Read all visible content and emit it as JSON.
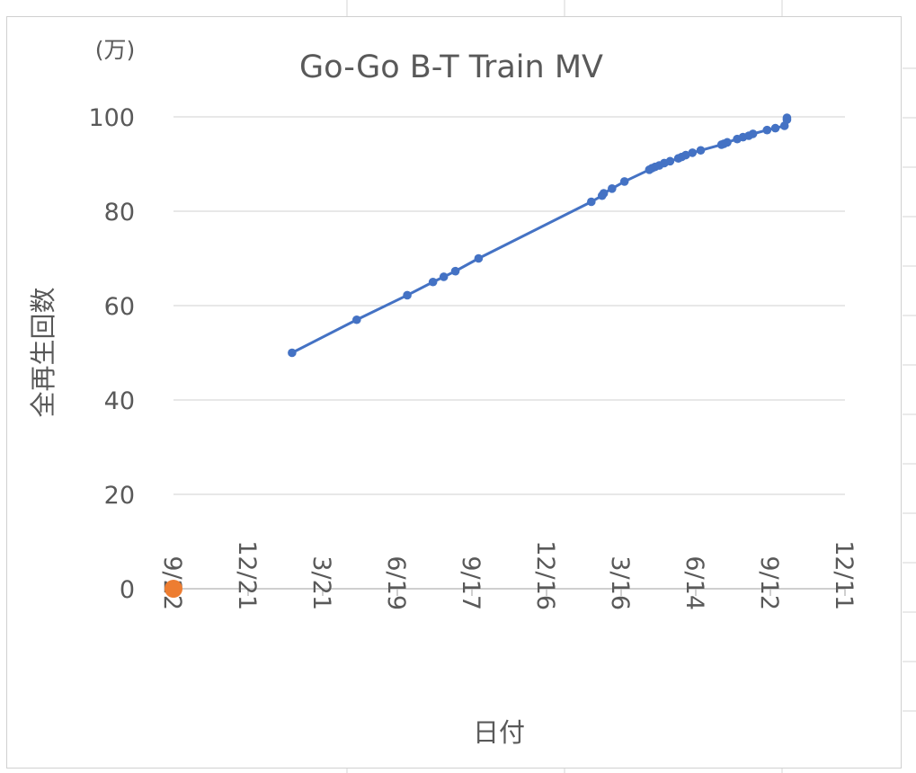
{
  "chart_data": {
    "type": "line",
    "title": "Go-Go B-T Train MV",
    "unit_label": "(万)",
    "xlabel": "日付",
    "ylabel": "全再生回数",
    "ylim": [
      0,
      100
    ],
    "yticks": [
      "0",
      "20",
      "40",
      "60",
      "80",
      "100"
    ],
    "xlim": [
      "2020-09-22",
      "2022-12-11"
    ],
    "xticks": [
      "9/22",
      "12/21",
      "3/21",
      "6/19",
      "9/17",
      "12/16",
      "3/16",
      "6/14",
      "9/12",
      "12/11"
    ],
    "grid": "horizontal",
    "legend": "none",
    "series": [
      {
        "color": "#4472c4",
        "points": [
          {
            "x": "2021-02-12",
            "y": 50.0
          },
          {
            "x": "2021-05-01",
            "y": 57.0
          },
          {
            "x": "2021-07-01",
            "y": 62.2
          },
          {
            "x": "2021-08-01",
            "y": 65.0
          },
          {
            "x": "2021-08-14",
            "y": 66.1
          },
          {
            "x": "2021-08-28",
            "y": 67.3
          },
          {
            "x": "2021-09-25",
            "y": 70.0
          },
          {
            "x": "2022-02-08",
            "y": 82.0
          },
          {
            "x": "2022-02-21",
            "y": 83.3
          },
          {
            "x": "2022-02-23",
            "y": 83.8
          },
          {
            "x": "2022-03-05",
            "y": 84.8
          },
          {
            "x": "2022-03-20",
            "y": 86.3
          },
          {
            "x": "2022-04-19",
            "y": 88.8
          },
          {
            "x": "2022-04-22",
            "y": 89.1
          },
          {
            "x": "2022-04-26",
            "y": 89.4
          },
          {
            "x": "2022-05-01",
            "y": 89.7
          },
          {
            "x": "2022-05-07",
            "y": 90.2
          },
          {
            "x": "2022-05-14",
            "y": 90.6
          },
          {
            "x": "2022-05-24",
            "y": 91.2
          },
          {
            "x": "2022-05-28",
            "y": 91.5
          },
          {
            "x": "2022-06-02",
            "y": 91.9
          },
          {
            "x": "2022-06-10",
            "y": 92.4
          },
          {
            "x": "2022-06-20",
            "y": 92.9
          },
          {
            "x": "2022-07-15",
            "y": 94.1
          },
          {
            "x": "2022-07-18",
            "y": 94.3
          },
          {
            "x": "2022-07-22",
            "y": 94.6
          },
          {
            "x": "2022-08-03",
            "y": 95.3
          },
          {
            "x": "2022-08-10",
            "y": 95.7
          },
          {
            "x": "2022-08-17",
            "y": 96.0
          },
          {
            "x": "2022-08-22",
            "y": 96.4
          },
          {
            "x": "2022-09-08",
            "y": 97.2
          },
          {
            "x": "2022-09-18",
            "y": 97.6
          },
          {
            "x": "2022-09-29",
            "y": 98.1
          },
          {
            "x": "2022-10-02",
            "y": 99.4
          },
          {
            "x": "2022-10-02",
            "y": 99.8
          }
        ]
      },
      {
        "color": "#ed7d31",
        "points": [
          {
            "x": "2020-09-22",
            "y": 0
          }
        ]
      }
    ]
  }
}
